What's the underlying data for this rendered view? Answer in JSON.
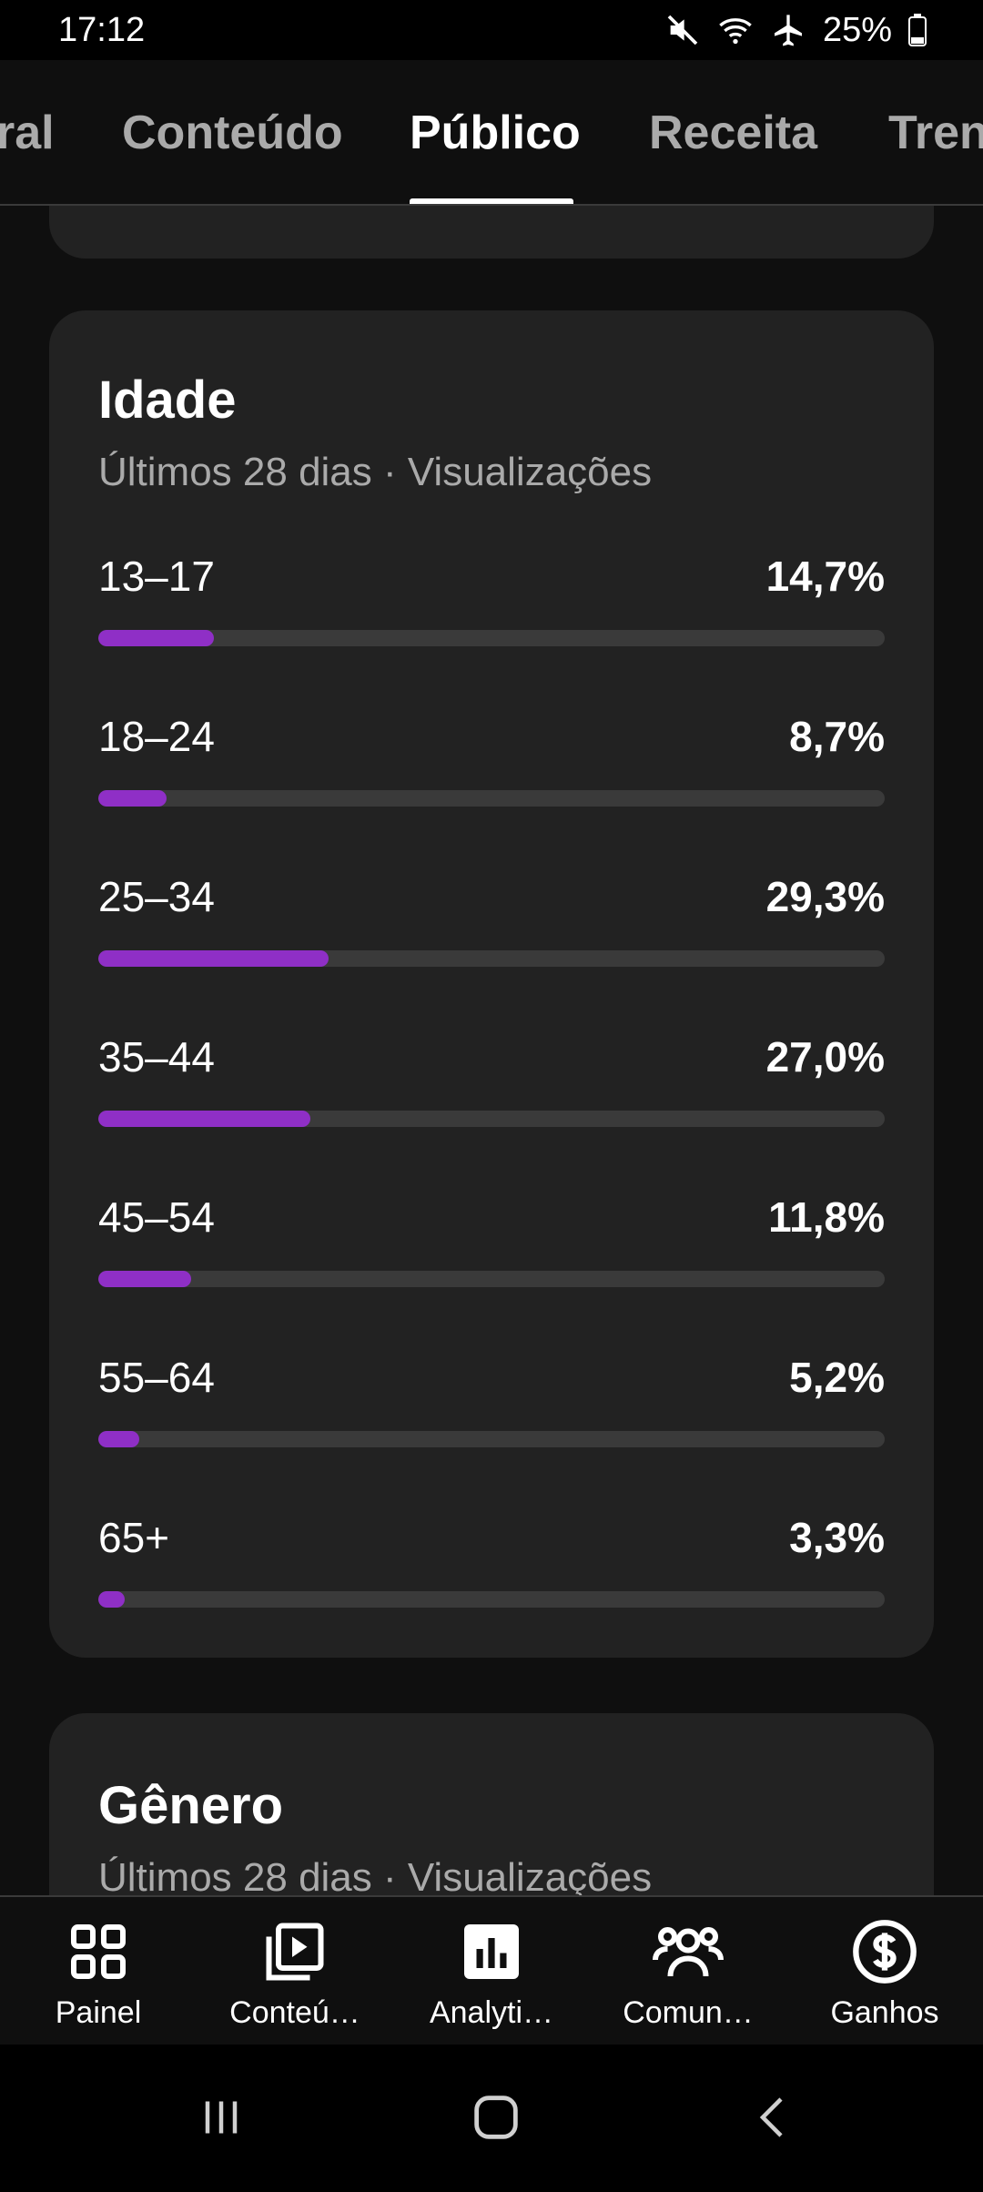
{
  "status": {
    "time": "17:12",
    "battery": "25%",
    "icons": [
      "mute-icon",
      "wifi-icon",
      "airplane-icon",
      "battery-icon"
    ]
  },
  "tabs": [
    {
      "label": "ral",
      "active": false
    },
    {
      "label": "Conteúdo",
      "active": false
    },
    {
      "label": "Público",
      "active": true
    },
    {
      "label": "Receita",
      "active": false
    },
    {
      "label": "Tren",
      "active": false
    }
  ],
  "age_card": {
    "title": "Idade",
    "subtitle": "Últimos 28 dias · Visualizações",
    "rows": [
      {
        "label": "13–17",
        "value": "14,7%",
        "percent": 14.7
      },
      {
        "label": "18–24",
        "value": "8,7%",
        "percent": 8.7
      },
      {
        "label": "25–34",
        "value": "29,3%",
        "percent": 29.3
      },
      {
        "label": "35–44",
        "value": "27,0%",
        "percent": 27.0
      },
      {
        "label": "45–54",
        "value": "11,8%",
        "percent": 11.8
      },
      {
        "label": "55–64",
        "value": "5,2%",
        "percent": 5.2
      },
      {
        "label": "65+",
        "value": "3,3%",
        "percent": 3.3
      }
    ]
  },
  "gender_card": {
    "title": "Gênero",
    "subtitle": "Últimos 28 dias · Visualizações"
  },
  "bottom_nav": [
    {
      "label": "Painel",
      "icon": "dashboard-icon"
    },
    {
      "label": "Conteú…",
      "icon": "content-icon"
    },
    {
      "label": "Analyti…",
      "icon": "analytics-icon"
    },
    {
      "label": "Comun…",
      "icon": "community-icon"
    },
    {
      "label": "Ganhos",
      "icon": "earnings-icon"
    }
  ],
  "colors": {
    "accent_bar": "#8f2fc6",
    "card_bg": "#222222",
    "page_bg": "#0f0f0f"
  }
}
